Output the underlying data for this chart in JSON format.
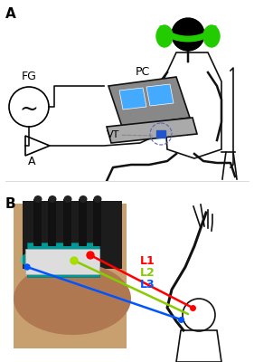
{
  "panel_A_label": "A",
  "panel_B_label": "B",
  "fg_label": "FG",
  "pc_label": "PC",
  "vt_label": "VT",
  "a_label": "A",
  "L1_label": "L1",
  "L2_label": "L2",
  "L3_label": "L3",
  "L1_color": "#ff0000",
  "L2_color": "#88cc00",
  "L3_color": "#0055ff",
  "bg_color": "#ffffff",
  "green_color": "#22cc00",
  "body_color": "#111111",
  "gray_color": "#888888",
  "blue_screen": "#44aaff",
  "dark_color": "#1a1a1a",
  "teal_color": "#00aaaa",
  "skin_color": "#c8a070"
}
